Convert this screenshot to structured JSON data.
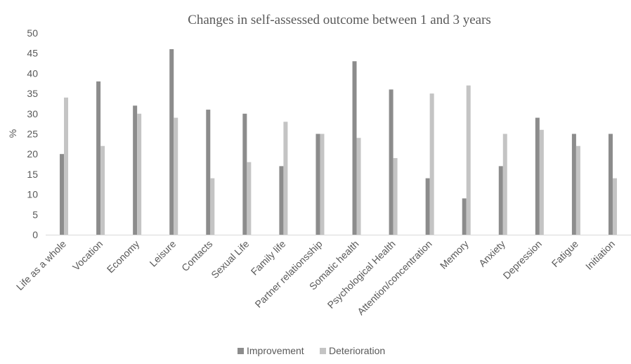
{
  "chart_data": {
    "type": "bar",
    "title": "Changes in self-assessed outcome between 1 and 3 years",
    "xlabel": "",
    "ylabel": "%",
    "ylim": [
      0,
      50
    ],
    "yticks": [
      0,
      5,
      10,
      15,
      20,
      25,
      30,
      35,
      40,
      45,
      50
    ],
    "grid": false,
    "legend_position": "bottom",
    "categories": [
      "Life as a whole",
      "Vocation",
      "Economy",
      "Leisure",
      "Contacts",
      "Sexual Life",
      "Family life",
      "Partner relationsship",
      "Somatic health",
      "Psychological Health",
      "Attention/concentration",
      "Memory",
      "Anxiety",
      "Depression",
      "Fatigue",
      "Initiation"
    ],
    "series": [
      {
        "name": "Improvement",
        "color": "#8c8c8c",
        "values": [
          20,
          38,
          32,
          46,
          31,
          30,
          17,
          25,
          43,
          36,
          14,
          9,
          17,
          29,
          25,
          25
        ]
      },
      {
        "name": "Deterioration",
        "color": "#c4c4c4",
        "values": [
          34,
          22,
          30,
          29,
          14,
          18,
          28,
          25,
          24,
          19,
          35,
          37,
          25,
          26,
          22,
          14
        ]
      }
    ]
  }
}
